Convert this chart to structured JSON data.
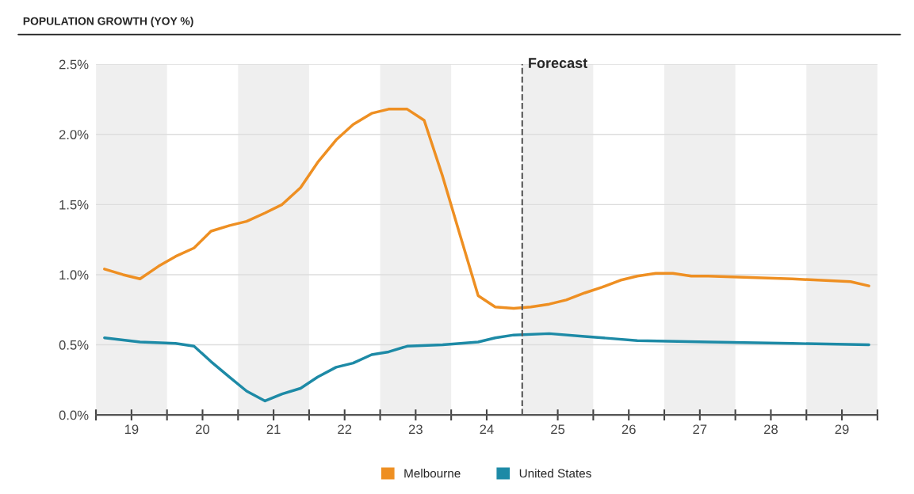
{
  "chart_data": {
    "type": "line",
    "title": "POPULATION GROWTH (YOY %)",
    "xlim": [
      18.5,
      29.5
    ],
    "ylim": [
      0,
      2.5
    ],
    "xticks": [
      19,
      20,
      21,
      22,
      23,
      24,
      25,
      26,
      27,
      28,
      29,
      {
        "value": 18.5,
        "label": null
      },
      {
        "value": 19.5,
        "label": null
      },
      {
        "value": 20.5,
        "label": null
      },
      {
        "value": 21.5,
        "label": null
      },
      {
        "value": 22.5,
        "label": null
      },
      {
        "value": 23.5,
        "label": null
      },
      {
        "value": 25.5,
        "label": null
      },
      {
        "value": 26.5,
        "label": null
      },
      {
        "value": 27.5,
        "label": null
      },
      {
        "value": 28.5,
        "label": null
      },
      {
        "value": 29.5,
        "label": null
      }
    ],
    "yticks": [
      {
        "value": 0,
        "label": "0.0%"
      },
      {
        "value": 0.5,
        "label": "0.5%"
      },
      {
        "value": 1.0,
        "label": "1.0%"
      },
      {
        "value": 1.5,
        "label": "1.5%"
      },
      {
        "value": 2.0,
        "label": "2.0%"
      },
      {
        "value": 2.5,
        "label": "2.5%"
      }
    ],
    "grid": "y",
    "legend": "bottom",
    "bands": [
      {
        "axis": "x",
        "from": 18.5,
        "to": 19.5,
        "color": "#efefef"
      },
      {
        "axis": "x",
        "from": 20.5,
        "to": 21.5,
        "color": "#efefef"
      },
      {
        "axis": "x",
        "from": 22.5,
        "to": 23.5,
        "color": "#efefef"
      },
      {
        "axis": "x",
        "from": 24.5,
        "to": 25.5,
        "color": "#efefef"
      },
      {
        "axis": "x",
        "from": 26.5,
        "to": 27.5,
        "color": "#efefef"
      },
      {
        "axis": "x",
        "from": 28.5,
        "to": 29.5,
        "color": "#efefef"
      }
    ],
    "ref_lines": [
      {
        "axis": "x",
        "value": 24.5,
        "label": "Forecast",
        "color": "#555555",
        "line_style": "dashed"
      }
    ],
    "series": [
      {
        "name": "Melbourne",
        "color": "#ee8f22",
        "x": [
          18.62,
          18.88,
          19.12,
          19.38,
          19.62,
          19.88,
          20.12,
          20.38,
          20.62,
          20.88,
          21.12,
          21.38,
          21.62,
          21.88,
          22.12,
          22.38,
          22.62,
          22.88,
          23.12,
          23.38,
          23.62,
          23.88,
          24.12,
          24.38,
          24.62,
          24.88,
          25.12,
          25.38,
          25.62,
          25.88,
          26.12,
          26.38,
          26.62,
          26.88,
          27.12,
          28.3,
          29.12,
          29.38
        ],
        "values": [
          1.04,
          1.0,
          0.97,
          1.06,
          1.13,
          1.19,
          1.31,
          1.35,
          1.38,
          1.44,
          1.5,
          1.62,
          1.8,
          1.96,
          2.07,
          2.15,
          2.18,
          2.18,
          2.1,
          1.7,
          1.29,
          0.85,
          0.77,
          0.76,
          0.77,
          0.79,
          0.82,
          0.87,
          0.91,
          0.96,
          0.99,
          1.01,
          1.01,
          0.99,
          0.99,
          0.97,
          0.95,
          0.92
        ]
      },
      {
        "name": "United States",
        "color": "#1d8aa6",
        "x": [
          18.62,
          19.12,
          19.62,
          19.88,
          20.12,
          20.38,
          20.62,
          20.88,
          21.12,
          21.38,
          21.62,
          21.88,
          22.12,
          22.38,
          22.62,
          22.88,
          23.38,
          23.88,
          24.12,
          24.38,
          24.88,
          25.38,
          26.12,
          27.12,
          28.3,
          29.38
        ],
        "values": [
          0.55,
          0.52,
          0.51,
          0.49,
          0.38,
          0.27,
          0.17,
          0.1,
          0.15,
          0.19,
          0.27,
          0.34,
          0.37,
          0.43,
          0.45,
          0.49,
          0.5,
          0.52,
          0.55,
          0.57,
          0.58,
          0.56,
          0.53,
          0.52,
          0.51,
          0.5
        ]
      }
    ]
  }
}
